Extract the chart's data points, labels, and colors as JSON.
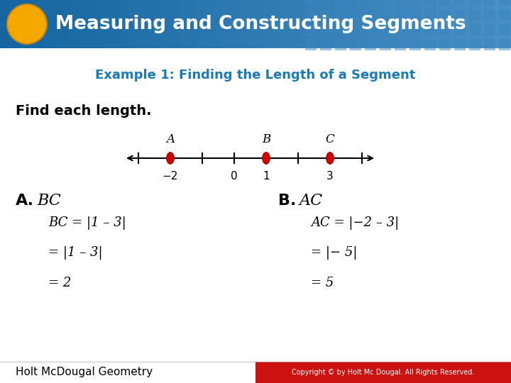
{
  "title": "Measuring and Constructing Segments",
  "subtitle": "Example 1: Finding the Length of a Segment",
  "subtitle_color": "#1a7ab5",
  "header_bg_left": "#1565a0",
  "header_bg_right": "#4a90c4",
  "header_text_color": "#ffffff",
  "circle_color": "#f5a800",
  "body_bg": "#ffffff",
  "find_text": "Find each length.",
  "footer_left_text": "Holt McDougal Geometry",
  "footer_right_text": "Copyright © by Holt Mc Dougal. All Rights Reserved.",
  "footer_right_bg": "#cc1111",
  "number_line": {
    "point_color": "#cc0000",
    "points": {
      "A": -2,
      "B": 1,
      "C": 3
    },
    "val_min": -3,
    "val_max": 4,
    "labeled_ticks": [
      -2,
      0,
      1,
      3
    ]
  },
  "figwidth": 7.2,
  "figheight": 5.4,
  "dpi": 100
}
